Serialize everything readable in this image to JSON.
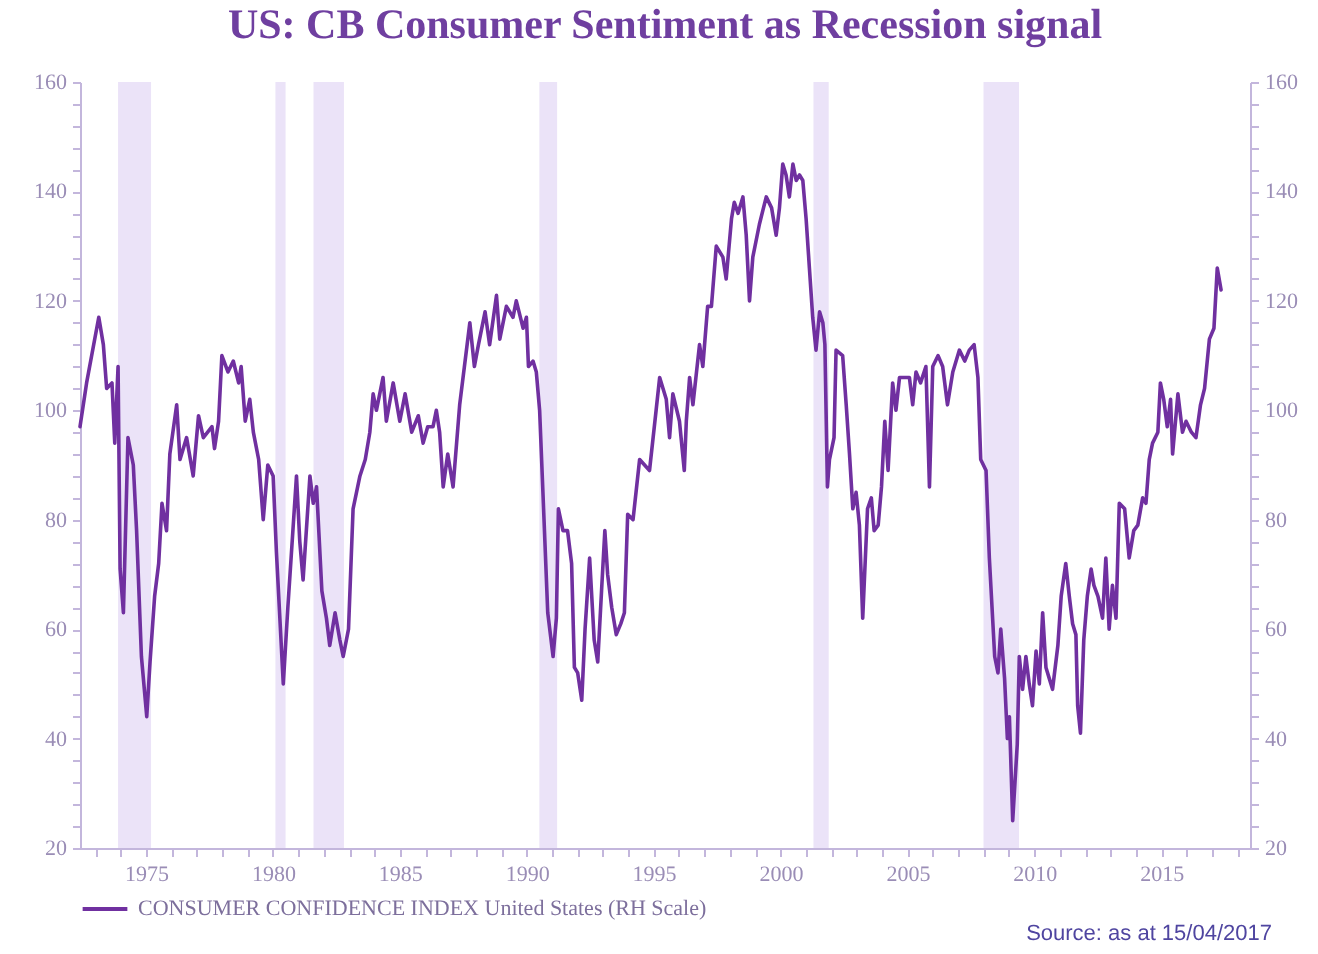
{
  "chart_data": {
    "type": "line",
    "title": "US: CB Consumer Sentiment as Recession signal",
    "x": [
      1972.4,
      1972.66,
      1973.14,
      1973.32,
      1973.45,
      1973.66,
      1973.77,
      1973.9,
      1973.98,
      1974.11,
      1974.29,
      1974.5,
      1974.63,
      1974.82,
      1975.03,
      1975.16,
      1975.34,
      1975.5,
      1975.63,
      1975.81,
      1975.94,
      1976.21,
      1976.34,
      1976.6,
      1976.86,
      1977.07,
      1977.26,
      1977.6,
      1977.7,
      1977.86,
      1977.99,
      1978.23,
      1978.44,
      1978.65,
      1978.75,
      1978.91,
      1979.09,
      1979.23,
      1979.44,
      1979.62,
      1979.8,
      1980.01,
      1980.14,
      1980.41,
      1980.59,
      1980.93,
      1981.06,
      1981.19,
      1981.46,
      1981.59,
      1981.72,
      1981.93,
      1982.11,
      1982.24,
      1982.45,
      1982.64,
      1982.77,
      1982.98,
      1983.16,
      1983.43,
      1983.64,
      1983.82,
      1983.95,
      1984.08,
      1984.34,
      1984.47,
      1984.74,
      1985.0,
      1985.21,
      1985.47,
      1985.73,
      1985.92,
      1986.1,
      1986.31,
      1986.44,
      1986.57,
      1986.71,
      1986.89,
      1987.1,
      1987.36,
      1987.76,
      1987.94,
      1988.1,
      1988.36,
      1988.54,
      1988.81,
      1988.94,
      1989.2,
      1989.46,
      1989.59,
      1989.86,
      1989.99,
      1990.07,
      1990.25,
      1990.38,
      1990.51,
      1990.64,
      1990.83,
      1991.04,
      1991.17,
      1991.25,
      1991.43,
      1991.61,
      1991.77,
      1991.88,
      1992.01,
      1992.17,
      1992.3,
      1992.48,
      1992.66,
      1992.8,
      1992.95,
      1993.08,
      1993.19,
      1993.35,
      1993.53,
      1993.71,
      1993.85,
      1993.98,
      1994.19,
      1994.45,
      1994.84,
      1995.1,
      1995.24,
      1995.5,
      1995.63,
      1995.76,
      1996.02,
      1996.21,
      1996.29,
      1996.42,
      1996.55,
      1996.81,
      1996.94,
      1997.13,
      1997.28,
      1997.47,
      1997.73,
      1997.86,
      1998.07,
      1998.18,
      1998.33,
      1998.52,
      1998.65,
      1998.78,
      1998.91,
      1999.17,
      1999.44,
      1999.65,
      1999.83,
      1999.96,
      2000.09,
      2000.22,
      2000.35,
      2000.49,
      2000.62,
      2000.75,
      2000.88,
      2001.01,
      2001.14,
      2001.27,
      2001.4,
      2001.54,
      2001.67,
      2001.75,
      2001.85,
      2001.93,
      2002.11,
      2002.19,
      2002.45,
      2002.59,
      2002.72,
      2002.85,
      2002.98,
      2003.11,
      2003.24,
      2003.43,
      2003.58,
      2003.69,
      2003.85,
      2003.98,
      2004.11,
      2004.24,
      2004.42,
      2004.55,
      2004.69,
      2004.82,
      2005.08,
      2005.21,
      2005.34,
      2005.52,
      2005.73,
      2005.87,
      2006.0,
      2006.21,
      2006.39,
      2006.58,
      2006.79,
      2007.05,
      2007.26,
      2007.44,
      2007.63,
      2007.78,
      2007.89,
      2008.1,
      2008.23,
      2008.44,
      2008.57,
      2008.68,
      2008.83,
      2008.94,
      2009.02,
      2009.15,
      2009.33,
      2009.41,
      2009.54,
      2009.67,
      2009.8,
      2009.93,
      2010.07,
      2010.2,
      2010.33,
      2010.46,
      2010.59,
      2010.72,
      2010.93,
      2011.06,
      2011.24,
      2011.38,
      2011.51,
      2011.64,
      2011.71,
      2011.82,
      2011.95,
      2012.09,
      2012.24,
      2012.35,
      2012.51,
      2012.69,
      2012.82,
      2012.95,
      2013.08,
      2013.22,
      2013.35,
      2013.56,
      2013.74,
      2013.92,
      2014.08,
      2014.27,
      2014.4,
      2014.53,
      2014.66,
      2014.87,
      2014.97,
      2015.1,
      2015.24,
      2015.37,
      2015.45,
      2015.66,
      2015.84,
      2015.98,
      2016.19,
      2016.37,
      2016.55,
      2016.71,
      2016.9,
      2017.08,
      2017.21,
      2017.36
    ],
    "series": [
      {
        "name": "CONSUMER CONFIDENCE INDEX United States (RH Scale)",
        "color": "#7030a0",
        "axis": "y2",
        "values": [
          97,
          105,
          117,
          112,
          104,
          105,
          94,
          108,
          71,
          63,
          95,
          90,
          78,
          55,
          44,
          54,
          66,
          72,
          83,
          78,
          92,
          101,
          91,
          95,
          88,
          99,
          95,
          97,
          93,
          98,
          110,
          107,
          109,
          105,
          108,
          98,
          102,
          96,
          91,
          80,
          90,
          88,
          74,
          50,
          64,
          88,
          76,
          69,
          88,
          83,
          86,
          67,
          62,
          57,
          63,
          58,
          55,
          60,
          82,
          88,
          91,
          96,
          103,
          100,
          106,
          98,
          105,
          98,
          103,
          96,
          99,
          94,
          97,
          97,
          100,
          96,
          86,
          92,
          86,
          101,
          116,
          108,
          112,
          118,
          112,
          121,
          113,
          119,
          117,
          120,
          115,
          117,
          108,
          109,
          107,
          100,
          85,
          63,
          55,
          62,
          82,
          78,
          78,
          72,
          53,
          52,
          47,
          60,
          73,
          58,
          54,
          67,
          78,
          70,
          64,
          59,
          61,
          63,
          81,
          80,
          91,
          89,
          100,
          106,
          102,
          95,
          103,
          98,
          89,
          98,
          106,
          101,
          112,
          108,
          119,
          119,
          130,
          128,
          124,
          135,
          138,
          136,
          139,
          132,
          120,
          128,
          134,
          139,
          137,
          132,
          137,
          145,
          143,
          139,
          145,
          142,
          143,
          142,
          135,
          126,
          117,
          111,
          118,
          116,
          112,
          86,
          91,
          95,
          111,
          110,
          101,
          92,
          82,
          85,
          79,
          62,
          82,
          84,
          78,
          79,
          86,
          98,
          89,
          105,
          100,
          106,
          106,
          106,
          101,
          107,
          105,
          108,
          86,
          108,
          110,
          108,
          101,
          107,
          111,
          109,
          111,
          112,
          106,
          91,
          89,
          73,
          55,
          52,
          60,
          51,
          40,
          44,
          25,
          39,
          55,
          49,
          55,
          50,
          46,
          56,
          50,
          63,
          53,
          51,
          49,
          57,
          66,
          72,
          66,
          61,
          59,
          46,
          41,
          58,
          66,
          71,
          68,
          66,
          62,
          73,
          60,
          68,
          62,
          83,
          82,
          73,
          78,
          79,
          84,
          83,
          91,
          94,
          96,
          105,
          102,
          97,
          102,
          92,
          103,
          96,
          98,
          96,
          95,
          101,
          104,
          113,
          115,
          126,
          122
        ]
      }
    ],
    "xlim": [
      1972.4,
      2018.5
    ],
    "xticks": [
      {
        "value": 1973,
        "label": null
      },
      {
        "value": 1974,
        "label": null
      },
      1975,
      {
        "value": 1976,
        "label": null
      },
      {
        "value": 1977,
        "label": null
      },
      {
        "value": 1978,
        "label": null
      },
      {
        "value": 1979,
        "label": null
      },
      1980,
      {
        "value": 1981,
        "label": null
      },
      {
        "value": 1982,
        "label": null
      },
      {
        "value": 1983,
        "label": null
      },
      {
        "value": 1984,
        "label": null
      },
      1985,
      {
        "value": 1986,
        "label": null
      },
      {
        "value": 1987,
        "label": null
      },
      {
        "value": 1988,
        "label": null
      },
      {
        "value": 1989,
        "label": null
      },
      1990,
      {
        "value": 1991,
        "label": null
      },
      {
        "value": 1992,
        "label": null
      },
      {
        "value": 1993,
        "label": null
      },
      {
        "value": 1994,
        "label": null
      },
      1995,
      {
        "value": 1996,
        "label": null
      },
      {
        "value": 1997,
        "label": null
      },
      {
        "value": 1998,
        "label": null
      },
      {
        "value": 1999,
        "label": null
      },
      2000,
      {
        "value": 2001,
        "label": null
      },
      {
        "value": 2002,
        "label": null
      },
      {
        "value": 2003,
        "label": null
      },
      {
        "value": 2004,
        "label": null
      },
      2005,
      {
        "value": 2006,
        "label": null
      },
      {
        "value": 2007,
        "label": null
      },
      {
        "value": 2008,
        "label": null
      },
      {
        "value": 2009,
        "label": null
      },
      2010,
      {
        "value": 2011,
        "label": null
      },
      {
        "value": 2012,
        "label": null
      },
      {
        "value": 2013,
        "label": null
      },
      {
        "value": 2014,
        "label": null
      },
      2015,
      {
        "value": 2016,
        "label": null
      },
      {
        "value": 2017,
        "label": null
      },
      {
        "value": 2018,
        "label": null
      }
    ],
    "ylim": [
      20,
      160
    ],
    "yticks": [
      20,
      {
        "value": 24,
        "label": null
      },
      {
        "value": 28,
        "label": null
      },
      {
        "value": 32,
        "label": null
      },
      {
        "value": 36,
        "label": null
      },
      40,
      {
        "value": 44,
        "label": null
      },
      {
        "value": 48,
        "label": null
      },
      {
        "value": 52,
        "label": null
      },
      {
        "value": 56,
        "label": null
      },
      60,
      {
        "value": 64,
        "label": null
      },
      {
        "value": 68,
        "label": null
      },
      {
        "value": 72,
        "label": null
      },
      {
        "value": 76,
        "label": null
      },
      80,
      {
        "value": 84,
        "label": null
      },
      {
        "value": 88,
        "label": null
      },
      {
        "value": 92,
        "label": null
      },
      {
        "value": 96,
        "label": null
      },
      100,
      {
        "value": 104,
        "label": null
      },
      {
        "value": 108,
        "label": null
      },
      {
        "value": 112,
        "label": null
      },
      {
        "value": 116,
        "label": null
      },
      120,
      {
        "value": 124,
        "label": null
      },
      {
        "value": 128,
        "label": null
      },
      {
        "value": 132,
        "label": null
      },
      {
        "value": 136,
        "label": null
      },
      140,
      {
        "value": 144,
        "label": null
      },
      {
        "value": 148,
        "label": null
      },
      {
        "value": 152,
        "label": null
      },
      {
        "value": 156,
        "label": null
      },
      160
    ],
    "y2lim": [
      20,
      160
    ],
    "y2ticks": [
      20,
      {
        "value": 24,
        "label": null
      },
      {
        "value": 28,
        "label": null
      },
      {
        "value": 32,
        "label": null
      },
      {
        "value": 36,
        "label": null
      },
      40,
      {
        "value": 44,
        "label": null
      },
      {
        "value": 48,
        "label": null
      },
      {
        "value": 52,
        "label": null
      },
      {
        "value": 56,
        "label": null
      },
      60,
      {
        "value": 64,
        "label": null
      },
      {
        "value": 68,
        "label": null
      },
      {
        "value": 72,
        "label": null
      },
      {
        "value": 76,
        "label": null
      },
      80,
      {
        "value": 84,
        "label": null
      },
      {
        "value": 88,
        "label": null
      },
      {
        "value": 92,
        "label": null
      },
      {
        "value": 96,
        "label": null
      },
      100,
      {
        "value": 104,
        "label": null
      },
      {
        "value": 108,
        "label": null
      },
      {
        "value": 112,
        "label": null
      },
      {
        "value": 116,
        "label": null
      },
      120,
      {
        "value": 124,
        "label": null
      },
      {
        "value": 128,
        "label": null
      },
      {
        "value": 132,
        "label": null
      },
      {
        "value": 136,
        "label": null
      },
      140,
      {
        "value": 144,
        "label": null
      },
      {
        "value": 148,
        "label": null
      },
      {
        "value": 152,
        "label": null
      },
      {
        "value": 156,
        "label": null
      },
      160
    ],
    "bands": [
      {
        "axis": "x",
        "from": 1973.9,
        "to": 1975.2,
        "color": "#ebe3f8"
      },
      {
        "axis": "x",
        "from": 1980.1,
        "to": 1980.5,
        "color": "#ebe3f8"
      },
      {
        "axis": "x",
        "from": 1981.6,
        "to": 1982.8,
        "color": "#ebe3f8"
      },
      {
        "axis": "x",
        "from": 1990.5,
        "to": 1991.2,
        "color": "#ebe3f8"
      },
      {
        "axis": "x",
        "from": 2001.3,
        "to": 2001.9,
        "color": "#ebe3f8"
      },
      {
        "axis": "x",
        "from": 2008.0,
        "to": 2009.4,
        "color": "#ebe3f8"
      }
    ],
    "legend": "bottom",
    "annotations": [
      "Source: as at 15/04/2017"
    ]
  }
}
